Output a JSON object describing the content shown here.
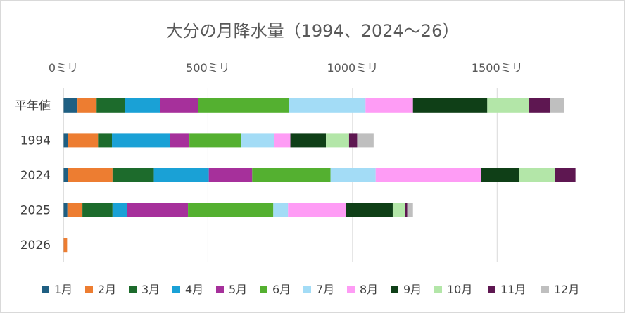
{
  "chart_data": {
    "type": "bar",
    "orientation": "horizontal",
    "stacked": true,
    "title": "大分の月降水量（1994、2024～26）",
    "xlabel": "",
    "ylabel": "",
    "xlim": [
      0,
      1750
    ],
    "x_ticks": [
      0,
      500,
      1000,
      1500
    ],
    "x_tick_labels": [
      "0ミリ",
      "500ミリ",
      "1000ミリ",
      "1500ミリ"
    ],
    "x_axis_position": "top",
    "grid": "vertical",
    "legend_position": "bottom",
    "categories": [
      "平年値",
      "1994",
      "2024",
      "2025",
      "2026"
    ],
    "series": [
      {
        "name": "1月",
        "color": "#1f5f82",
        "values": [
          49,
          16,
          15,
          14,
          0
        ]
      },
      {
        "name": "2月",
        "color": "#ed7d31",
        "values": [
          66,
          104,
          155,
          52,
          13
        ]
      },
      {
        "name": "3月",
        "color": "#1d6b2c",
        "values": [
          97,
          48,
          143,
          104,
          0
        ]
      },
      {
        "name": "4月",
        "color": "#1aa1d6",
        "values": [
          123,
          200,
          190,
          50,
          0
        ]
      },
      {
        "name": "5月",
        "color": "#a6309b",
        "values": [
          130,
          68,
          150,
          211,
          0
        ]
      },
      {
        "name": "6月",
        "color": "#54b030",
        "values": [
          316,
          180,
          271,
          295,
          0
        ]
      },
      {
        "name": "7月",
        "color": "#a3dcf6",
        "values": [
          264,
          112,
          156,
          51,
          0
        ]
      },
      {
        "name": "8月",
        "color": "#fe9cf5",
        "values": [
          164,
          57,
          364,
          201,
          0
        ]
      },
      {
        "name": "9月",
        "color": "#0f3f17",
        "values": [
          257,
          123,
          132,
          161,
          0
        ]
      },
      {
        "name": "10月",
        "color": "#b3e6a8",
        "values": [
          145,
          80,
          124,
          43,
          0
        ]
      },
      {
        "name": "11月",
        "color": "#5e1751",
        "values": [
          72,
          28,
          71,
          7,
          0
        ]
      },
      {
        "name": "12月",
        "color": "#bfbfbf",
        "values": [
          49,
          57,
          0,
          20,
          0
        ]
      }
    ]
  }
}
